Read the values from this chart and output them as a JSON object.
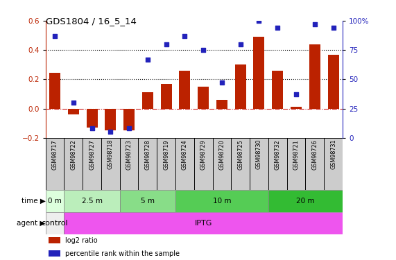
{
  "title": "GDS1804 / 16_5_14",
  "samples": [
    "GSM98717",
    "GSM98722",
    "GSM98727",
    "GSM98718",
    "GSM98723",
    "GSM98728",
    "GSM98719",
    "GSM98724",
    "GSM98729",
    "GSM98720",
    "GSM98725",
    "GSM98730",
    "GSM98732",
    "GSM98721",
    "GSM98726",
    "GSM98731"
  ],
  "log2_ratio": [
    0.245,
    -0.04,
    -0.13,
    -0.15,
    -0.15,
    0.11,
    0.17,
    0.26,
    0.15,
    0.06,
    0.3,
    0.49,
    0.26,
    0.01,
    0.44,
    0.37
  ],
  "pct_rank": [
    87,
    30,
    8,
    5,
    8,
    67,
    80,
    87,
    75,
    47,
    80,
    100,
    94,
    37,
    97,
    94
  ],
  "bar_color": "#bb2200",
  "dot_color": "#2222bb",
  "ylim_left": [
    -0.2,
    0.6
  ],
  "ylim_right": [
    0,
    100
  ],
  "yticks_left": [
    -0.2,
    0.0,
    0.2,
    0.4,
    0.6
  ],
  "yticks_right": [
    0,
    25,
    50,
    75,
    100
  ],
  "yticklabels_right": [
    "0",
    "25",
    "50",
    "75",
    "100%"
  ],
  "hlines": [
    0.2,
    0.4
  ],
  "zero_line_color": "#cc2222",
  "time_groups": [
    {
      "label": "0 m",
      "start": 0,
      "end": 1,
      "color": "#ddffdd"
    },
    {
      "label": "2.5 m",
      "start": 1,
      "end": 4,
      "color": "#bbeebb"
    },
    {
      "label": "5 m",
      "start": 4,
      "end": 7,
      "color": "#88dd88"
    },
    {
      "label": "10 m",
      "start": 7,
      "end": 12,
      "color": "#55cc55"
    },
    {
      "label": "20 m",
      "start": 12,
      "end": 16,
      "color": "#33bb33"
    }
  ],
  "agent_groups": [
    {
      "label": "control",
      "start": 0,
      "end": 1,
      "color": "#eeeeee"
    },
    {
      "label": "IPTG",
      "start": 1,
      "end": 16,
      "color": "#ee55ee"
    }
  ],
  "legend_items": [
    {
      "label": "log2 ratio",
      "color": "#bb2200"
    },
    {
      "label": "percentile rank within the sample",
      "color": "#2222bb"
    }
  ],
  "bg_color": "#ffffff"
}
